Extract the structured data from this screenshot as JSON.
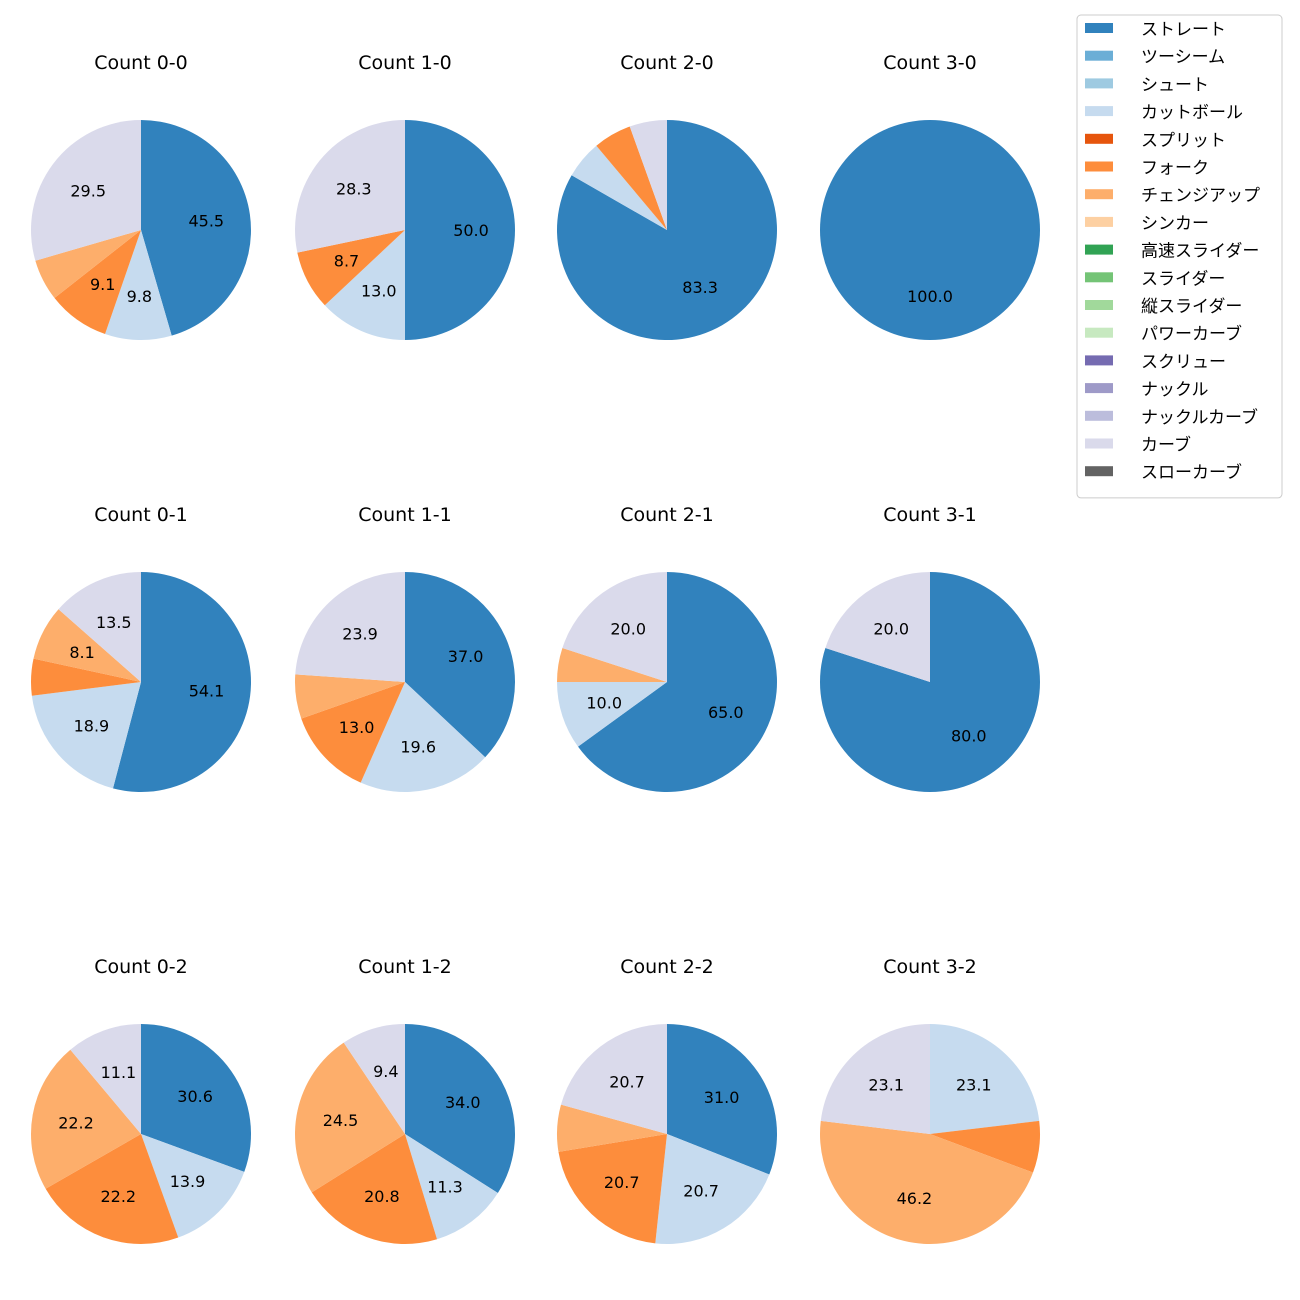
{
  "chart_data": {
    "type": "pie",
    "legend": {
      "placement": "top-right",
      "entries": [
        {
          "name": "ストレート",
          "color": "#3182bd"
        },
        {
          "name": "ツーシーム",
          "color": "#6baed6"
        },
        {
          "name": "シュート",
          "color": "#9ecae1"
        },
        {
          "name": "カットボール",
          "color": "#c6dbef"
        },
        {
          "name": "スプリット",
          "color": "#e6550d"
        },
        {
          "name": "フォーク",
          "color": "#fd8d3c"
        },
        {
          "name": "チェンジアップ",
          "color": "#fdae6b"
        },
        {
          "name": "シンカー",
          "color": "#fdd0a2"
        },
        {
          "name": "高速スライダー",
          "color": "#31a354"
        },
        {
          "name": "スライダー",
          "color": "#74c476"
        },
        {
          "name": "縦スライダー",
          "color": "#a1d99b"
        },
        {
          "name": "パワーカーブ",
          "color": "#c7e9c0"
        },
        {
          "name": "スクリュー",
          "color": "#756bb1"
        },
        {
          "name": "ナックル",
          "color": "#9e9ac8"
        },
        {
          "name": "ナックルカーブ",
          "color": "#bcbddc"
        },
        {
          "name": "カーブ",
          "color": "#dadaeb"
        },
        {
          "name": "スローカーブ",
          "color": "#636363"
        }
      ]
    },
    "pies": [
      {
        "title": "Count 0-0",
        "slices": [
          {
            "category": "ストレート",
            "value": 45.5,
            "label": "45.5"
          },
          {
            "category": "カットボール",
            "value": 9.8,
            "label": "9.8"
          },
          {
            "category": "フォーク",
            "value": 9.1,
            "label": "9.1"
          },
          {
            "category": "チェンジアップ",
            "value": 6.1,
            "label": ""
          },
          {
            "category": "カーブ",
            "value": 29.5,
            "label": "29.5"
          }
        ]
      },
      {
        "title": "Count 1-0",
        "slices": [
          {
            "category": "ストレート",
            "value": 50.0,
            "label": "50.0"
          },
          {
            "category": "カットボール",
            "value": 13.0,
            "label": "13.0"
          },
          {
            "category": "フォーク",
            "value": 8.7,
            "label": "8.7"
          },
          {
            "category": "カーブ",
            "value": 28.3,
            "label": "28.3"
          }
        ]
      },
      {
        "title": "Count 2-0",
        "slices": [
          {
            "category": "ストレート",
            "value": 83.3,
            "label": "83.3"
          },
          {
            "category": "カットボール",
            "value": 5.6,
            "label": ""
          },
          {
            "category": "フォーク",
            "value": 5.6,
            "label": ""
          },
          {
            "category": "カーブ",
            "value": 5.5,
            "label": ""
          }
        ]
      },
      {
        "title": "Count 3-0",
        "slices": [
          {
            "category": "ストレート",
            "value": 100.0,
            "label": "100.0"
          }
        ]
      },
      {
        "title": "Count 0-1",
        "slices": [
          {
            "category": "ストレート",
            "value": 54.1,
            "label": "54.1"
          },
          {
            "category": "カットボール",
            "value": 18.9,
            "label": "18.9"
          },
          {
            "category": "フォーク",
            "value": 5.4,
            "label": ""
          },
          {
            "category": "チェンジアップ",
            "value": 8.1,
            "label": "8.1"
          },
          {
            "category": "カーブ",
            "value": 13.5,
            "label": "13.5"
          }
        ]
      },
      {
        "title": "Count 1-1",
        "slices": [
          {
            "category": "ストレート",
            "value": 37.0,
            "label": "37.0"
          },
          {
            "category": "カットボール",
            "value": 19.6,
            "label": "19.6"
          },
          {
            "category": "フォーク",
            "value": 13.0,
            "label": "13.0"
          },
          {
            "category": "チェンジアップ",
            "value": 6.5,
            "label": ""
          },
          {
            "category": "カーブ",
            "value": 23.9,
            "label": "23.9"
          }
        ]
      },
      {
        "title": "Count 2-1",
        "slices": [
          {
            "category": "ストレート",
            "value": 65.0,
            "label": "65.0"
          },
          {
            "category": "カットボール",
            "value": 10.0,
            "label": "10.0"
          },
          {
            "category": "チェンジアップ",
            "value": 5.0,
            "label": ""
          },
          {
            "category": "カーブ",
            "value": 20.0,
            "label": "20.0"
          }
        ]
      },
      {
        "title": "Count 3-1",
        "slices": [
          {
            "category": "ストレート",
            "value": 80.0,
            "label": "80.0"
          },
          {
            "category": "カーブ",
            "value": 20.0,
            "label": "20.0"
          }
        ]
      },
      {
        "title": "Count 0-2",
        "slices": [
          {
            "category": "ストレート",
            "value": 30.6,
            "label": "30.6"
          },
          {
            "category": "カットボール",
            "value": 13.9,
            "label": "13.9"
          },
          {
            "category": "フォーク",
            "value": 22.2,
            "label": "22.2"
          },
          {
            "category": "チェンジアップ",
            "value": 22.2,
            "label": "22.2"
          },
          {
            "category": "カーブ",
            "value": 11.1,
            "label": "11.1"
          }
        ]
      },
      {
        "title": "Count 1-2",
        "slices": [
          {
            "category": "ストレート",
            "value": 34.0,
            "label": "34.0"
          },
          {
            "category": "カットボール",
            "value": 11.3,
            "label": "11.3"
          },
          {
            "category": "フォーク",
            "value": 20.8,
            "label": "20.8"
          },
          {
            "category": "チェンジアップ",
            "value": 24.5,
            "label": "24.5"
          },
          {
            "category": "カーブ",
            "value": 9.4,
            "label": "9.4"
          }
        ]
      },
      {
        "title": "Count 2-2",
        "slices": [
          {
            "category": "ストレート",
            "value": 31.0,
            "label": "31.0"
          },
          {
            "category": "カットボール",
            "value": 20.7,
            "label": "20.7"
          },
          {
            "category": "フォーク",
            "value": 20.7,
            "label": "20.7"
          },
          {
            "category": "チェンジアップ",
            "value": 6.9,
            "label": ""
          },
          {
            "category": "カーブ",
            "value": 20.7,
            "label": "20.7"
          }
        ]
      },
      {
        "title": "Count 3-2",
        "slices": [
          {
            "category": "カットボール",
            "value": 23.1,
            "label": "23.1"
          },
          {
            "category": "フォーク",
            "value": 7.6,
            "label": ""
          },
          {
            "category": "チェンジアップ",
            "value": 46.2,
            "label": "46.2"
          },
          {
            "category": "カーブ",
            "value": 23.1,
            "label": "23.1"
          }
        ]
      }
    ]
  }
}
